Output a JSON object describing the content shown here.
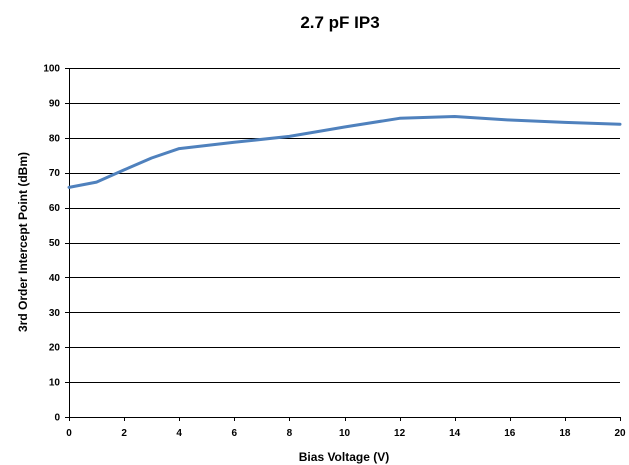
{
  "chart_data": {
    "type": "line",
    "title": "2.7 pF IP3",
    "xlabel": "Bias Voltage (V)",
    "ylabel": "3rd Order Intercept Point (dBm)",
    "xlim": [
      0,
      20
    ],
    "ylim": [
      0,
      100
    ],
    "x_ticks": [
      "0",
      "2",
      "4",
      "6",
      "8",
      "10",
      "12",
      "14",
      "16",
      "18",
      "20"
    ],
    "y_ticks": [
      "0",
      "10",
      "20",
      "30",
      "40",
      "50",
      "60",
      "70",
      "80",
      "90",
      "100"
    ],
    "grid": "horizontal",
    "legend": "none",
    "series": [
      {
        "color": "#4f81bd",
        "points": [
          {
            "x": 0,
            "y": 65.8
          },
          {
            "x": 1,
            "y": 67.3
          },
          {
            "x": 2,
            "y": 70.8
          },
          {
            "x": 3,
            "y": 74.2
          },
          {
            "x": 4,
            "y": 76.9
          },
          {
            "x": 6,
            "y": 78.7
          },
          {
            "x": 8,
            "y": 80.4
          },
          {
            "x": 10,
            "y": 83.1
          },
          {
            "x": 12,
            "y": 85.6
          },
          {
            "x": 14,
            "y": 86.1
          },
          {
            "x": 16,
            "y": 85.1
          },
          {
            "x": 18,
            "y": 84.4
          },
          {
            "x": 20,
            "y": 83.9
          }
        ]
      }
    ]
  }
}
